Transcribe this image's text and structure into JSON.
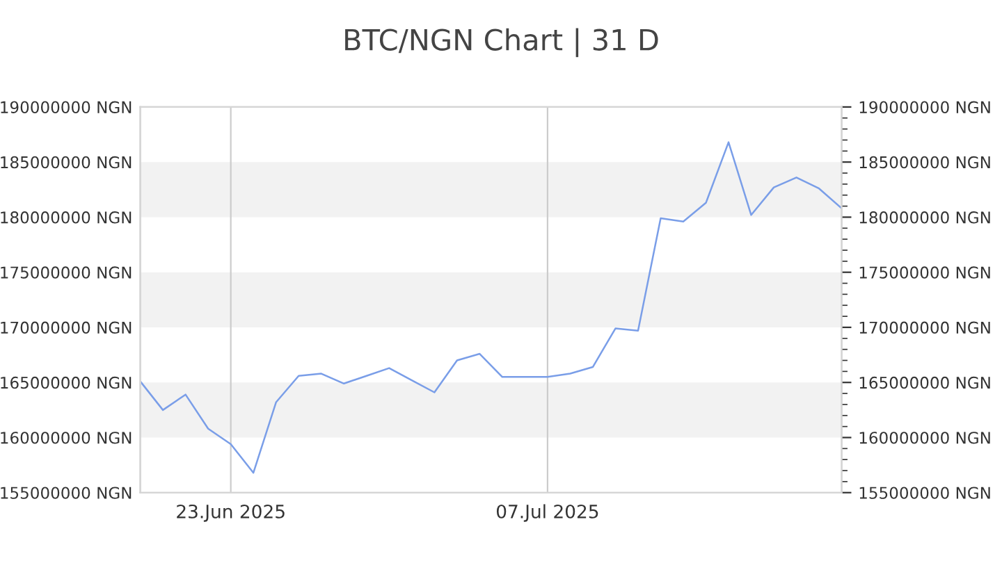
{
  "chart_data": {
    "type": "line",
    "title": "BTC/NGN Chart | 31 D",
    "x": [
      "2025-06-19",
      "2025-06-20",
      "2025-06-21",
      "2025-06-22",
      "2025-06-23",
      "2025-06-24",
      "2025-06-25",
      "2025-06-26",
      "2025-06-27",
      "2025-06-28",
      "2025-06-29",
      "2025-06-30",
      "2025-07-01",
      "2025-07-02",
      "2025-07-03",
      "2025-07-04",
      "2025-07-05",
      "2025-07-06",
      "2025-07-07",
      "2025-07-08",
      "2025-07-09",
      "2025-07-10",
      "2025-07-11",
      "2025-07-12",
      "2025-07-13",
      "2025-07-14",
      "2025-07-15",
      "2025-07-16",
      "2025-07-17",
      "2025-07-18",
      "2025-07-19",
      "2025-07-20"
    ],
    "series": [
      {
        "color": "#7a9ee8",
        "values": [
          165100000,
          162500000,
          163900000,
          160800000,
          159400000,
          156800000,
          163200000,
          165600000,
          165800000,
          164900000,
          165600000,
          166300000,
          165200000,
          164100000,
          167000000,
          167600000,
          165500000,
          165500000,
          165500000,
          165800000,
          166400000,
          169900000,
          169700000,
          179900000,
          179600000,
          181300000,
          186800000,
          180200000,
          182700000,
          183600000,
          182600000,
          180800000
        ]
      }
    ],
    "xlim": [
      "2025-06-19",
      "2025-07-20"
    ],
    "xticks": [
      {
        "value": "2025-06-23",
        "label": "23.Jun 2025"
      },
      {
        "value": "2025-07-07",
        "label": "07.Jul 2025"
      }
    ],
    "ylim": [
      155000000,
      190000000
    ],
    "yticks": [
      {
        "value": 155000000,
        "label": "155000000 NGN"
      },
      {
        "value": 160000000,
        "label": "160000000 NGN"
      },
      {
        "value": 165000000,
        "label": "165000000 NGN"
      },
      {
        "value": 170000000,
        "label": "170000000 NGN"
      },
      {
        "value": 175000000,
        "label": "175000000 NGN"
      },
      {
        "value": 180000000,
        "label": "180000000 NGN"
      },
      {
        "value": 185000000,
        "label": "185000000 NGN"
      },
      {
        "value": 190000000,
        "label": "190000000 NGN"
      }
    ],
    "y2lim": [
      155000000,
      190000000
    ],
    "y2ticks": [
      {
        "value": 155000000,
        "label": "155000000 NGN"
      },
      {
        "value": 160000000,
        "label": "160000000 NGN"
      },
      {
        "value": 165000000,
        "label": "165000000 NGN"
      },
      {
        "value": 170000000,
        "label": "170000000 NGN"
      },
      {
        "value": 175000000,
        "label": "175000000 NGN"
      },
      {
        "value": 180000000,
        "label": "180000000 NGN"
      },
      {
        "value": 185000000,
        "label": "185000000 NGN"
      },
      {
        "value": 190000000,
        "label": "190000000 NGN"
      }
    ],
    "bands": [
      {
        "axis": "y",
        "from": 160000000,
        "to": 165000000,
        "color": "#f2f2f2"
      },
      {
        "axis": "y",
        "from": 170000000,
        "to": 175000000,
        "color": "#f2f2f2"
      },
      {
        "axis": "y",
        "from": 180000000,
        "to": 185000000,
        "color": "#f2f2f2"
      }
    ],
    "grid": "x",
    "line_style": "solid",
    "marker": "none"
  }
}
